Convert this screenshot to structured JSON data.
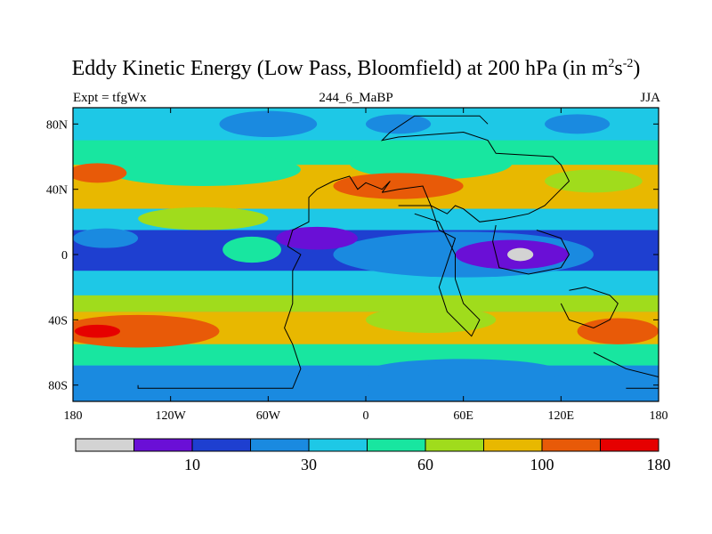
{
  "title": {
    "main": "Eddy Kinetic Energy (Low Pass, Bloomfield) at 200 hPa (in m",
    "sup1": "2",
    "mid": "s",
    "sup2": "-2",
    "end": ")"
  },
  "subtitle": {
    "left": "Expt = tfgWx",
    "center": "244_6_MaBP",
    "right": "JJA"
  },
  "chart_data": {
    "type": "heatmap",
    "title": "Eddy Kinetic Energy (Low Pass, Bloomfield) at 200 hPa (in m^2 s^-2)",
    "xlabel": "",
    "ylabel": "",
    "xlim": [
      -180,
      180
    ],
    "ylim": [
      -90,
      90
    ],
    "x_ticks": [
      {
        "value": -180,
        "label": "180"
      },
      {
        "value": -120,
        "label": "120W"
      },
      {
        "value": -60,
        "label": "60W"
      },
      {
        "value": 0,
        "label": "0"
      },
      {
        "value": 60,
        "label": "60E"
      },
      {
        "value": 120,
        "label": "120E"
      },
      {
        "value": 180,
        "label": "180"
      }
    ],
    "y_ticks": [
      {
        "value": 80,
        "label": "80N"
      },
      {
        "value": 40,
        "label": "40N"
      },
      {
        "value": 0,
        "label": "0"
      },
      {
        "value": -40,
        "label": "40S"
      },
      {
        "value": -80,
        "label": "80S"
      }
    ],
    "colorbar": {
      "colors": [
        "#d3d3d3",
        "#6a0fd6",
        "#1e3fd0",
        "#1a8ae0",
        "#1ec8e6",
        "#18e6a0",
        "#a0dc1c",
        "#e8b800",
        "#e85a08",
        "#e60000"
      ],
      "labels": [
        {
          "after_index": 1,
          "label": "10"
        },
        {
          "after_index": 3,
          "label": "30"
        },
        {
          "after_index": 5,
          "label": "60"
        },
        {
          "after_index": 7,
          "label": "100"
        },
        {
          "after_index": 9,
          "label": "180"
        }
      ]
    },
    "base_level": 4,
    "regions": [
      {
        "type": "band",
        "lat0": 90,
        "lat1": 70,
        "level": 4
      },
      {
        "type": "band",
        "lat0": 70,
        "lat1": 55,
        "level": 5
      },
      {
        "type": "band",
        "lat0": 55,
        "lat1": 28,
        "level": 7
      },
      {
        "type": "band",
        "lat0": 28,
        "lat1": 15,
        "level": 4
      },
      {
        "type": "band",
        "lat0": 15,
        "lat1": -10,
        "level": 2
      },
      {
        "type": "band",
        "lat0": -10,
        "lat1": -25,
        "level": 4
      },
      {
        "type": "band",
        "lat0": -25,
        "lat1": -35,
        "level": 6
      },
      {
        "type": "band",
        "lat0": -35,
        "lat1": -55,
        "level": 7
      },
      {
        "type": "band",
        "lat0": -55,
        "lat1": -68,
        "level": 5
      },
      {
        "type": "band",
        "lat0": -68,
        "lat1": -90,
        "level": 3
      },
      {
        "type": "ellipse",
        "lon": -60,
        "lat": 80,
        "rlon": 30,
        "rlat": 8,
        "level": 3
      },
      {
        "type": "ellipse",
        "lon": 20,
        "lat": 80,
        "rlon": 20,
        "rlat": 6,
        "level": 3
      },
      {
        "type": "ellipse",
        "lon": 130,
        "lat": 80,
        "rlon": 20,
        "rlat": 6,
        "level": 3
      },
      {
        "type": "ellipse",
        "lon": -100,
        "lat": 52,
        "rlon": 60,
        "rlat": 10,
        "level": 5
      },
      {
        "type": "ellipse",
        "lon": 40,
        "lat": 56,
        "rlon": 50,
        "rlat": 10,
        "level": 5
      },
      {
        "type": "ellipse",
        "lon": -165,
        "lat": 50,
        "rlon": 18,
        "rlat": 6,
        "level": 8
      },
      {
        "type": "ellipse",
        "lon": 20,
        "lat": 42,
        "rlon": 40,
        "rlat": 8,
        "level": 8
      },
      {
        "type": "ellipse",
        "lon": 140,
        "lat": 45,
        "rlon": 30,
        "rlat": 7,
        "level": 6
      },
      {
        "type": "ellipse",
        "lon": -100,
        "lat": 22,
        "rlon": 40,
        "rlat": 7,
        "level": 6
      },
      {
        "type": "ellipse",
        "lon": 60,
        "lat": 0,
        "rlon": 80,
        "rlat": 14,
        "level": 3
      },
      {
        "type": "ellipse",
        "lon": 90,
        "lat": 0,
        "rlon": 35,
        "rlat": 9,
        "level": 1
      },
      {
        "type": "ellipse",
        "lon": -30,
        "lat": 10,
        "rlon": 25,
        "rlat": 7,
        "level": 1
      },
      {
        "type": "ellipse",
        "lon": -160,
        "lat": 10,
        "rlon": 20,
        "rlat": 6,
        "level": 3
      },
      {
        "type": "ellipse",
        "lon": -70,
        "lat": 3,
        "rlon": 18,
        "rlat": 8,
        "level": 5
      },
      {
        "type": "ellipse",
        "lon": -140,
        "lat": -47,
        "rlon": 50,
        "rlat": 10,
        "level": 8
      },
      {
        "type": "ellipse",
        "lon": -165,
        "lat": -47,
        "rlon": 14,
        "rlat": 4,
        "level": 9
      },
      {
        "type": "ellipse",
        "lon": 155,
        "lat": -47,
        "rlon": 25,
        "rlat": 8,
        "level": 8
      },
      {
        "type": "ellipse",
        "lon": 40,
        "lat": -40,
        "rlon": 40,
        "rlat": 8,
        "level": 6
      },
      {
        "type": "ellipse",
        "lon": 60,
        "lat": -72,
        "rlon": 60,
        "rlat": 8,
        "level": 3
      },
      {
        "type": "ellipse",
        "lon": 95,
        "lat": 0,
        "rlon": 8,
        "rlat": 4,
        "level": 0
      }
    ],
    "coastlines": [
      [
        [
          -140,
          -80
        ],
        [
          -140,
          -82
        ],
        [
          -45,
          -82
        ],
        [
          -40,
          -70
        ],
        [
          -45,
          -55
        ],
        [
          -50,
          -45
        ],
        [
          -45,
          -30
        ],
        [
          -45,
          -10
        ],
        [
          -40,
          0
        ],
        [
          -48,
          5
        ],
        [
          -45,
          15
        ],
        [
          -35,
          20
        ],
        [
          -35,
          35
        ],
        [
          -30,
          40
        ],
        [
          -20,
          45
        ],
        [
          -10,
          48
        ],
        [
          -5,
          40
        ],
        [
          0,
          44
        ],
        [
          10,
          40
        ],
        [
          15,
          45
        ],
        [
          10,
          38
        ]
      ],
      [
        [
          10,
          38
        ],
        [
          20,
          40
        ],
        [
          35,
          42
        ],
        [
          40,
          30
        ],
        [
          50,
          25
        ],
        [
          55,
          30
        ],
        [
          60,
          28
        ],
        [
          70,
          20
        ],
        [
          85,
          22
        ],
        [
          100,
          25
        ],
        [
          110,
          30
        ],
        [
          115,
          35
        ],
        [
          120,
          40
        ],
        [
          125,
          45
        ],
        [
          120,
          55
        ],
        [
          115,
          60
        ],
        [
          80,
          62
        ],
        [
          75,
          70
        ],
        [
          60,
          75
        ],
        [
          20,
          72
        ],
        [
          10,
          70
        ],
        [
          15,
          75
        ],
        [
          30,
          85
        ],
        [
          70,
          85
        ],
        [
          75,
          80
        ]
      ],
      [
        [
          20,
          30
        ],
        [
          40,
          30
        ],
        [
          45,
          15
        ],
        [
          55,
          10
        ],
        [
          50,
          -5
        ],
        [
          45,
          -20
        ],
        [
          50,
          -35
        ],
        [
          60,
          -45
        ],
        [
          65,
          -50
        ],
        [
          70,
          -40
        ],
        [
          60,
          -30
        ],
        [
          55,
          -15
        ],
        [
          55,
          0
        ],
        [
          45,
          20
        ],
        [
          30,
          25
        ]
      ],
      [
        [
          80,
          18
        ],
        [
          78,
          8
        ],
        [
          82,
          -8
        ],
        [
          100,
          -12
        ],
        [
          120,
          -8
        ],
        [
          125,
          0
        ],
        [
          120,
          10
        ],
        [
          105,
          15
        ]
      ],
      [
        [
          120,
          -30
        ],
        [
          125,
          -40
        ],
        [
          140,
          -45
        ],
        [
          150,
          -40
        ],
        [
          155,
          -30
        ],
        [
          150,
          -25
        ],
        [
          135,
          -20
        ],
        [
          125,
          -22
        ]
      ],
      [
        [
          140,
          -60
        ],
        [
          150,
          -65
        ],
        [
          160,
          -70
        ],
        [
          180,
          -75
        ],
        [
          180,
          -82
        ],
        [
          160,
          -82
        ]
      ]
    ]
  }
}
